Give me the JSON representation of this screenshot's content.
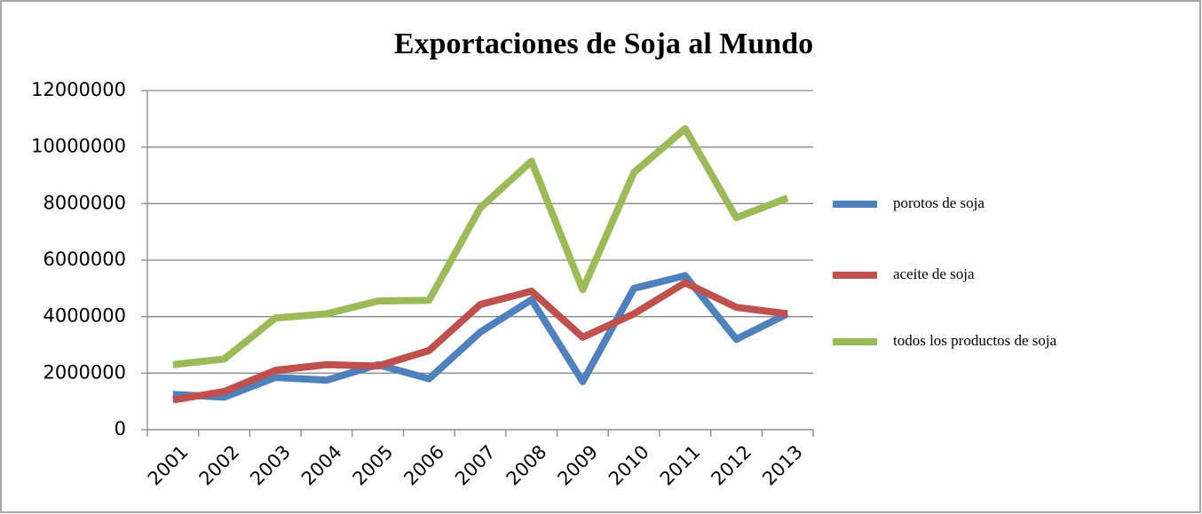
{
  "chart_data": {
    "type": "line",
    "title": "Exportaciones de Soja al Mundo",
    "categories": [
      "2001",
      "2002",
      "2003",
      "2004",
      "2005",
      "2006",
      "2007",
      "2008",
      "2009",
      "2010",
      "2011",
      "2012",
      "2013"
    ],
    "series": [
      {
        "name": "porotos de soja",
        "color": "#4f81bd",
        "values": [
          1250000,
          1150000,
          1850000,
          1750000,
          2300000,
          1800000,
          3450000,
          4600000,
          1700000,
          5000000,
          5450000,
          3200000,
          4100000
        ]
      },
      {
        "name": "aceite de soja",
        "color": "#c0504d",
        "values": [
          1050000,
          1350000,
          2100000,
          2300000,
          2250000,
          2800000,
          4430000,
          4900000,
          3270000,
          4100000,
          5200000,
          4330000,
          4100000
        ]
      },
      {
        "name": "todos los productos de soja",
        "color": "#9bbb59",
        "values": [
          2300000,
          2500000,
          3950000,
          4100000,
          4550000,
          4580000,
          7850000,
          9500000,
          4950000,
          9100000,
          10650000,
          7500000,
          8200000
        ]
      }
    ],
    "ylim": [
      0,
      12000000
    ],
    "yticks": [
      0,
      2000000,
      4000000,
      6000000,
      8000000,
      10000000,
      12000000
    ],
    "grid": true,
    "legend": "right"
  }
}
